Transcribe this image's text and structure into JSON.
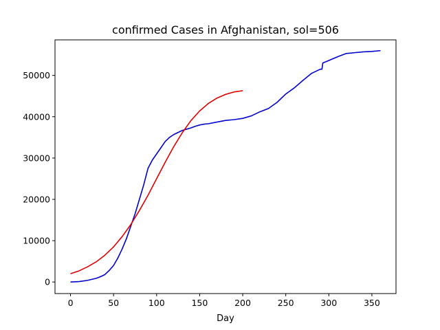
{
  "chart_data": {
    "type": "line",
    "title": "confirmed Cases in Afghanistan, sol=506",
    "xlabel": "Day",
    "ylabel": "",
    "xlim": [
      -18,
      378
    ],
    "ylim": [
      -2800,
      58600
    ],
    "x_ticks": [
      0,
      50,
      100,
      150,
      200,
      250,
      300,
      350
    ],
    "y_ticks": [
      0,
      10000,
      20000,
      30000,
      40000,
      50000
    ],
    "grid": false,
    "legend": "none",
    "series": [
      {
        "color": "#0000cc",
        "x": [
          0,
          10,
          20,
          30,
          35,
          40,
          45,
          50,
          55,
          60,
          65,
          70,
          75,
          80,
          85,
          90,
          95,
          100,
          105,
          110,
          115,
          120,
          125,
          130,
          135,
          140,
          145,
          150,
          155,
          160,
          170,
          180,
          190,
          200,
          210,
          220,
          230,
          240,
          250,
          260,
          270,
          280,
          290,
          292,
          293,
          300,
          310,
          320,
          330,
          340,
          350,
          360
        ],
        "y": [
          0,
          100,
          400,
          900,
          1300,
          1800,
          2800,
          4000,
          5800,
          8000,
          10500,
          13500,
          16500,
          20000,
          23500,
          27500,
          29500,
          31000,
          32500,
          34000,
          35000,
          35700,
          36200,
          36700,
          37000,
          37300,
          37700,
          38000,
          38200,
          38300,
          38700,
          39100,
          39300,
          39600,
          40200,
          41200,
          42000,
          43500,
          45500,
          47000,
          48800,
          50500,
          51500,
          51500,
          53000,
          53600,
          54500,
          55300,
          55500,
          55700,
          55800,
          56000
        ]
      },
      {
        "color": "#dd0000",
        "x": [
          0,
          10,
          20,
          30,
          40,
          50,
          60,
          70,
          80,
          90,
          100,
          110,
          120,
          130,
          140,
          150,
          160,
          170,
          180,
          190,
          200
        ],
        "y": [
          2000,
          2700,
          3700,
          4900,
          6500,
          8500,
          11000,
          13900,
          17300,
          21000,
          25000,
          29000,
          32800,
          36200,
          39100,
          41400,
          43200,
          44500,
          45400,
          46000,
          46300
        ]
      }
    ]
  }
}
